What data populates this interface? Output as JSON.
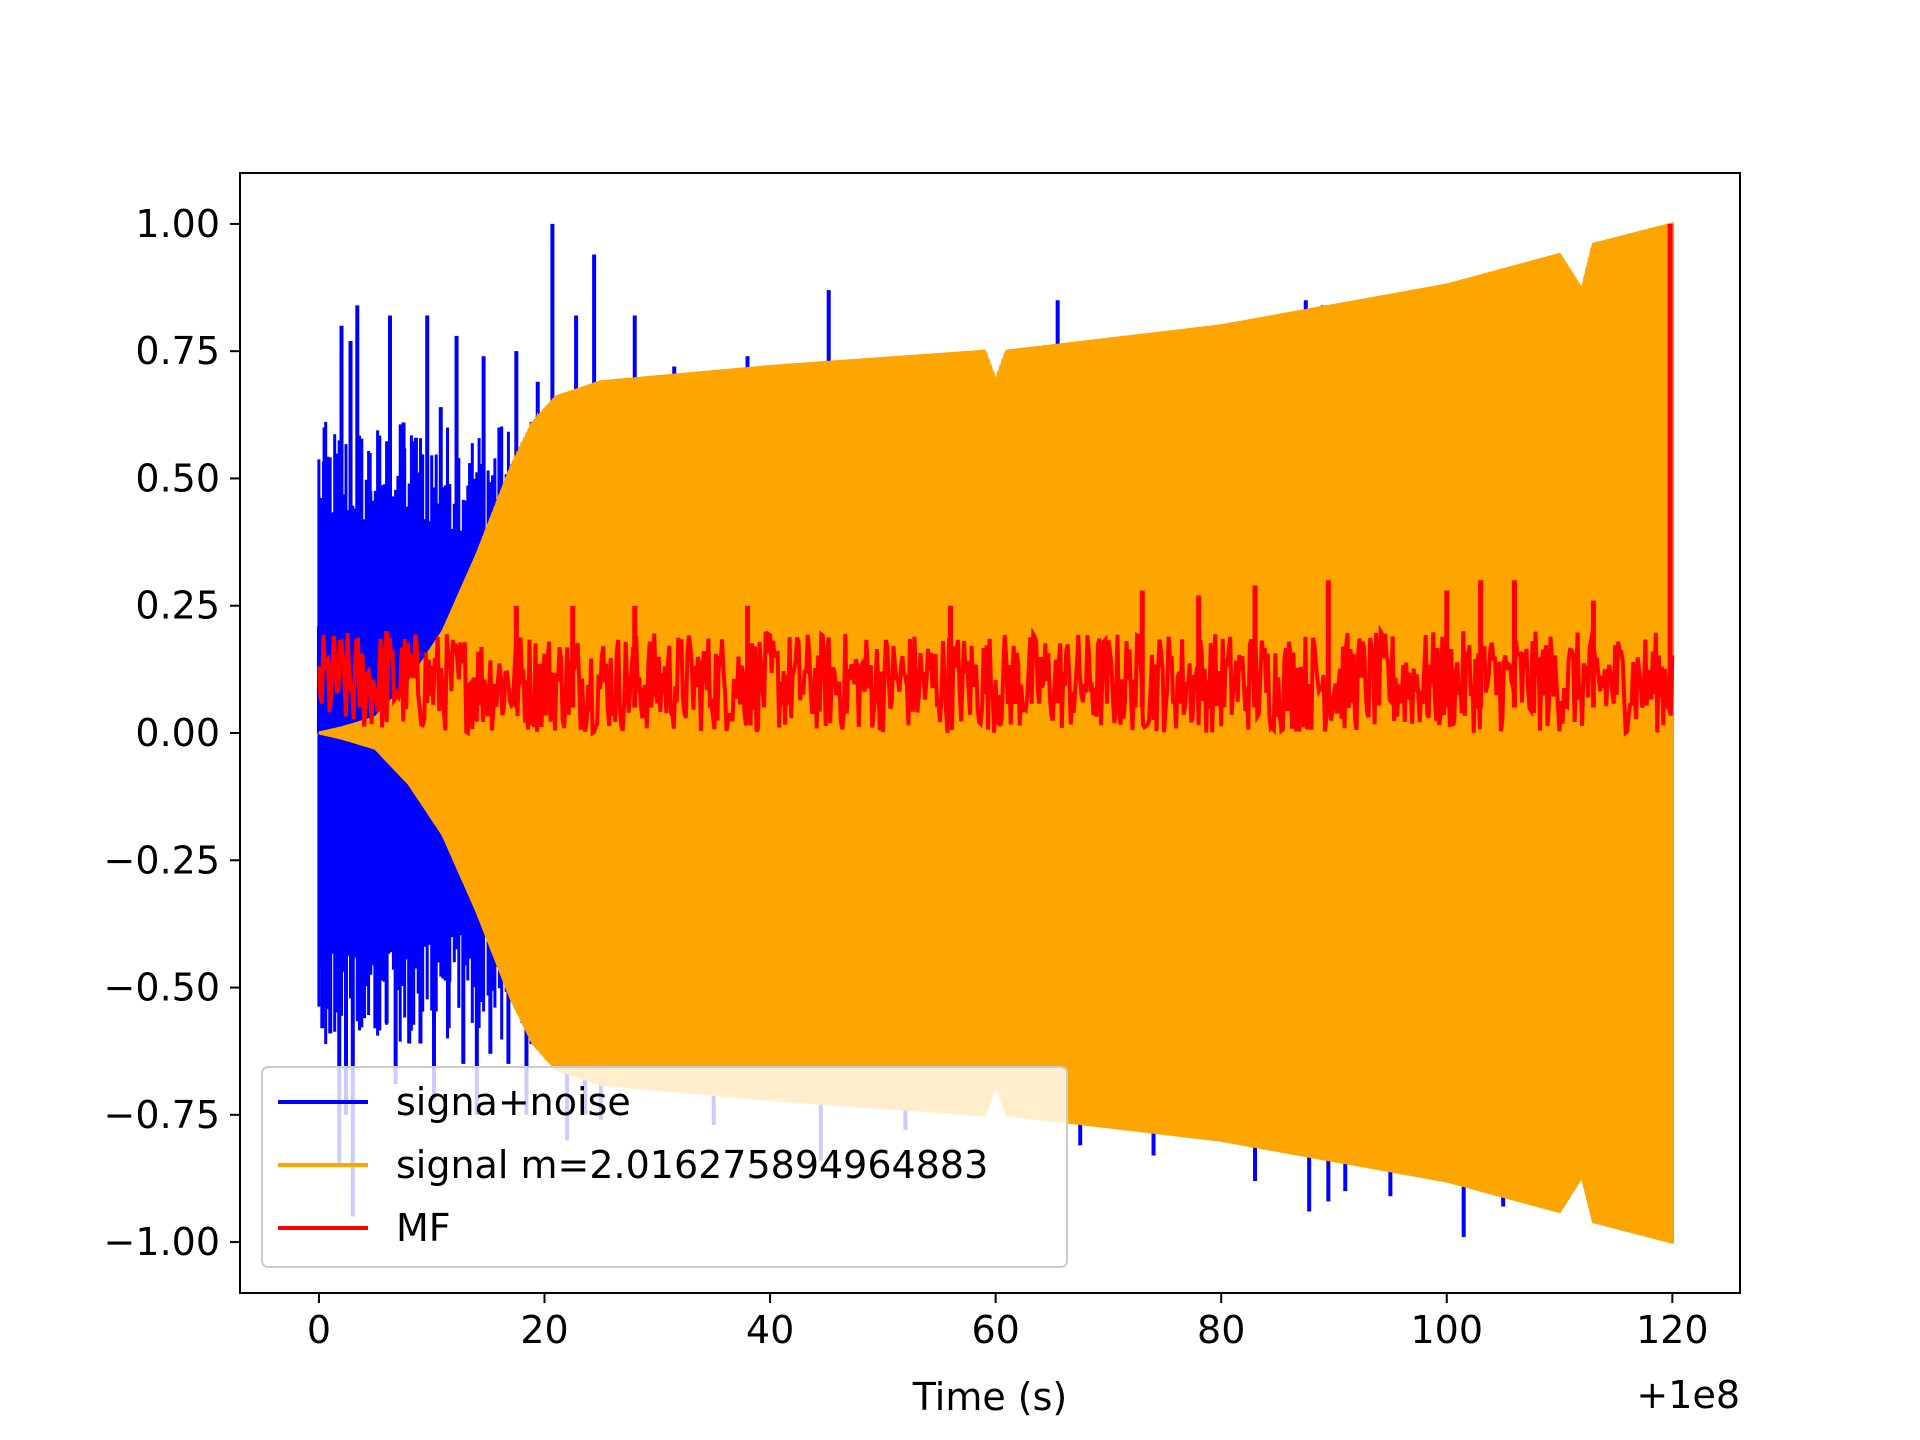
{
  "chart_data": {
    "type": "line",
    "title": "",
    "xlabel": "Time (s)",
    "ylabel": "",
    "x_offset_label": "+1e8",
    "xlim": [
      -7,
      126
    ],
    "ylim": [
      -1.1,
      1.1
    ],
    "x_ticks": [
      0,
      20,
      40,
      60,
      80,
      100,
      120
    ],
    "x_tick_labels": [
      "0",
      "20",
      "40",
      "60",
      "80",
      "100",
      "120"
    ],
    "y_ticks": [
      1.0,
      0.75,
      0.5,
      0.25,
      0.0,
      -0.25,
      -0.5,
      -0.75,
      -1.0
    ],
    "y_tick_labels": [
      "1.00",
      "0.75",
      "0.50",
      "0.25",
      "0.00",
      "−0.25",
      "−0.50",
      "−0.75",
      "−1.00"
    ],
    "grid": false,
    "legend_position": "lower-left",
    "series": [
      {
        "name": "signa+noise",
        "color": "#0000ff",
        "spikes": [
          {
            "x": 0.0,
            "y": 0.21
          },
          {
            "x": 0.3,
            "y": -0.58
          },
          {
            "x": 0.5,
            "y": 0.6
          },
          {
            "x": 1.0,
            "y": -0.59
          },
          {
            "x": 1.5,
            "y": 0.45
          },
          {
            "x": 1.8,
            "y": -0.85
          },
          {
            "x": 2.0,
            "y": 0.8
          },
          {
            "x": 2.4,
            "y": -0.75
          },
          {
            "x": 2.8,
            "y": 0.77
          },
          {
            "x": 3.0,
            "y": -0.95
          },
          {
            "x": 3.4,
            "y": 0.84
          },
          {
            "x": 4.0,
            "y": -0.56
          },
          {
            "x": 4.5,
            "y": 0.55
          },
          {
            "x": 5.0,
            "y": -0.58
          },
          {
            "x": 5.5,
            "y": 0.4
          },
          {
            "x": 6.0,
            "y": -0.57
          },
          {
            "x": 6.3,
            "y": 0.82
          },
          {
            "x": 6.8,
            "y": -0.69
          },
          {
            "x": 7.5,
            "y": 0.61
          },
          {
            "x": 8.0,
            "y": -0.61
          },
          {
            "x": 8.6,
            "y": 0.58
          },
          {
            "x": 9.0,
            "y": -0.61
          },
          {
            "x": 9.6,
            "y": 0.82
          },
          {
            "x": 10.2,
            "y": -0.72
          },
          {
            "x": 10.8,
            "y": 0.64
          },
          {
            "x": 11.5,
            "y": -0.58
          },
          {
            "x": 12.2,
            "y": 0.78
          },
          {
            "x": 12.8,
            "y": -0.65
          },
          {
            "x": 13.4,
            "y": 0.53
          },
          {
            "x": 14.0,
            "y": -0.75
          },
          {
            "x": 14.6,
            "y": 0.74
          },
          {
            "x": 15.2,
            "y": -0.63
          },
          {
            "x": 16.0,
            "y": 0.6
          },
          {
            "x": 16.8,
            "y": -0.65
          },
          {
            "x": 17.5,
            "y": 0.75
          },
          {
            "x": 18.4,
            "y": -0.75
          },
          {
            "x": 19.4,
            "y": 0.69
          },
          {
            "x": 20.7,
            "y": 1.0
          },
          {
            "x": 22.0,
            "y": -0.8
          },
          {
            "x": 22.8,
            "y": 0.82
          },
          {
            "x": 23.6,
            "y": -0.75
          },
          {
            "x": 24.4,
            "y": 0.94
          },
          {
            "x": 25.0,
            "y": -0.76
          },
          {
            "x": 28.0,
            "y": 0.82
          },
          {
            "x": 31.5,
            "y": 0.72
          },
          {
            "x": 35.0,
            "y": -0.77
          },
          {
            "x": 38.0,
            "y": 0.74
          },
          {
            "x": 45.2,
            "y": 0.87
          },
          {
            "x": 44.5,
            "y": -0.84
          },
          {
            "x": 52.0,
            "y": -0.78
          },
          {
            "x": 65.5,
            "y": 0.85
          },
          {
            "x": 67.5,
            "y": -0.81
          },
          {
            "x": 74.0,
            "y": -0.83
          },
          {
            "x": 83.0,
            "y": -0.88
          },
          {
            "x": 87.5,
            "y": 0.85
          },
          {
            "x": 87.8,
            "y": -0.94
          },
          {
            "x": 89.0,
            "y": 0.84
          },
          {
            "x": 89.5,
            "y": -0.92
          },
          {
            "x": 91.0,
            "y": -0.9
          },
          {
            "x": 95.0,
            "y": -0.91
          },
          {
            "x": 99.0,
            "y": 0.87
          },
          {
            "x": 101.5,
            "y": -0.99
          },
          {
            "x": 105.0,
            "y": -0.93
          }
        ]
      },
      {
        "name": "signal m=2.016275894964883",
        "color": "#ffa500",
        "envelope": [
          {
            "x": 0,
            "y": 0.0
          },
          {
            "x": 2,
            "y": 0.01
          },
          {
            "x": 5,
            "y": 0.03
          },
          {
            "x": 8,
            "y": 0.1
          },
          {
            "x": 11,
            "y": 0.2
          },
          {
            "x": 14,
            "y": 0.35
          },
          {
            "x": 17,
            "y": 0.52
          },
          {
            "x": 19,
            "y": 0.61
          },
          {
            "x": 21,
            "y": 0.66
          },
          {
            "x": 25,
            "y": 0.69
          },
          {
            "x": 40,
            "y": 0.72
          },
          {
            "x": 59,
            "y": 0.75
          },
          {
            "x": 60,
            "y": 0.69
          },
          {
            "x": 61,
            "y": 0.75
          },
          {
            "x": 80,
            "y": 0.8
          },
          {
            "x": 100,
            "y": 0.88
          },
          {
            "x": 110,
            "y": 0.94
          },
          {
            "x": 112,
            "y": 0.87
          },
          {
            "x": 113,
            "y": 0.96
          },
          {
            "x": 120,
            "y": 1.0
          }
        ]
      },
      {
        "name": "MF",
        "color": "#ff0000",
        "base_band": [
          0.0,
          0.2
        ],
        "peaks": [
          {
            "x": 6.0,
            "y": 0.2
          },
          {
            "x": 17.5,
            "y": 0.25
          },
          {
            "x": 22.5,
            "y": 0.25
          },
          {
            "x": 28.0,
            "y": 0.25
          },
          {
            "x": 38.0,
            "y": 0.25
          },
          {
            "x": 56.0,
            "y": 0.25
          },
          {
            "x": 73.0,
            "y": 0.28
          },
          {
            "x": 78.0,
            "y": 0.27
          },
          {
            "x": 83.0,
            "y": 0.29
          },
          {
            "x": 89.5,
            "y": 0.3
          },
          {
            "x": 100.0,
            "y": 0.28
          },
          {
            "x": 103.0,
            "y": 0.3
          },
          {
            "x": 106.0,
            "y": 0.3
          },
          {
            "x": 113.0,
            "y": 0.26
          },
          {
            "x": 119.8,
            "y": 1.0
          }
        ]
      }
    ]
  }
}
